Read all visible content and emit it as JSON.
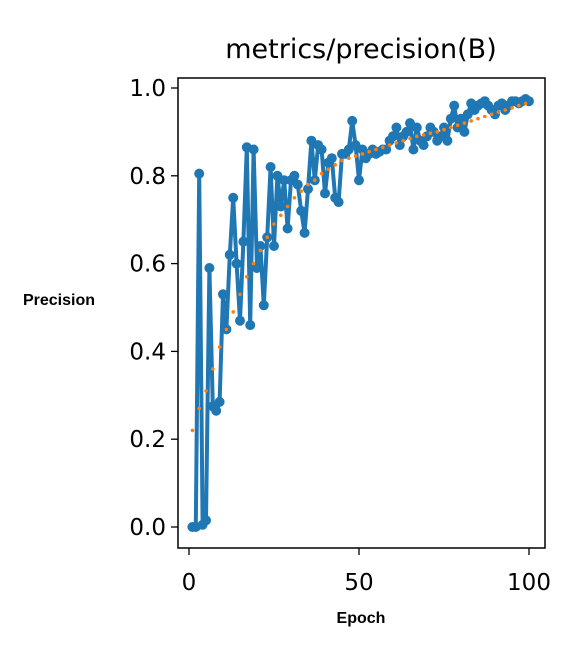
{
  "chart_data": {
    "type": "line",
    "title": "metrics/precision(B)",
    "xlabel": "Epoch",
    "ylabel": "Precision",
    "xlim": [
      0,
      100
    ],
    "ylim": [
      0,
      1.0
    ],
    "xticks": [
      0,
      50,
      100
    ],
    "xtick_labels": [
      "0",
      "50",
      "100"
    ],
    "yticks": [
      0.0,
      0.2,
      0.4,
      0.6,
      0.8,
      1.0
    ],
    "ytick_labels": [
      "0.0",
      "0.2",
      "0.4",
      "0.6",
      "0.8",
      "1.0"
    ],
    "grid": false,
    "colors": {
      "series": "#1f77b4",
      "smooth": "#ff7f0e"
    },
    "series": [
      {
        "style": "line-markers",
        "x": [
          1,
          2,
          3,
          4,
          5,
          6,
          7,
          8,
          9,
          10,
          11,
          12,
          13,
          14,
          15,
          16,
          17,
          18,
          19,
          20,
          21,
          22,
          23,
          24,
          25,
          26,
          27,
          28,
          29,
          30,
          31,
          32,
          33,
          34,
          35,
          36,
          37,
          38,
          39,
          40,
          41,
          42,
          43,
          44,
          45,
          46,
          47,
          48,
          49,
          50,
          51,
          52,
          53,
          54,
          55,
          56,
          57,
          58,
          59,
          60,
          61,
          62,
          63,
          64,
          65,
          66,
          67,
          68,
          69,
          70,
          71,
          72,
          73,
          74,
          75,
          76,
          77,
          78,
          79,
          80,
          81,
          82,
          83,
          84,
          85,
          86,
          87,
          88,
          89,
          90,
          91,
          92,
          93,
          94,
          95,
          96,
          97,
          98,
          99,
          100
        ],
        "y": [
          0.0,
          0.0,
          0.805,
          0.005,
          0.015,
          0.59,
          0.275,
          0.265,
          0.285,
          0.53,
          0.45,
          0.62,
          0.75,
          0.6,
          0.47,
          0.65,
          0.865,
          0.46,
          0.86,
          0.59,
          0.64,
          0.505,
          0.66,
          0.82,
          0.64,
          0.8,
          0.73,
          0.79,
          0.68,
          0.79,
          0.8,
          0.78,
          0.72,
          0.67,
          0.77,
          0.88,
          0.79,
          0.87,
          0.86,
          0.76,
          0.83,
          0.84,
          0.75,
          0.74,
          0.85,
          0.85,
          0.86,
          0.925,
          0.87,
          0.79,
          0.86,
          0.84,
          0.85,
          0.86,
          0.85,
          0.855,
          0.86,
          0.86,
          0.88,
          0.89,
          0.91,
          0.87,
          0.89,
          0.9,
          0.92,
          0.86,
          0.91,
          0.88,
          0.87,
          0.89,
          0.91,
          0.9,
          0.88,
          0.89,
          0.91,
          0.88,
          0.93,
          0.96,
          0.91,
          0.93,
          0.9,
          0.94,
          0.965,
          0.95,
          0.96,
          0.965,
          0.97,
          0.96,
          0.95,
          0.94,
          0.96,
          0.965,
          0.95,
          0.96,
          0.97,
          0.97,
          0.965,
          0.97,
          0.975,
          0.97
        ]
      },
      {
        "style": "dotted",
        "x": [
          1,
          3,
          5,
          7,
          9,
          11,
          13,
          15,
          17,
          19,
          21,
          23,
          25,
          27,
          29,
          31,
          33,
          35,
          37,
          39,
          41,
          43,
          45,
          47,
          49,
          51,
          53,
          55,
          57,
          59,
          61,
          63,
          65,
          67,
          69,
          71,
          73,
          75,
          77,
          79,
          81,
          83,
          85,
          87,
          89,
          91,
          93,
          95,
          97,
          99
        ],
        "y": [
          0.22,
          0.27,
          0.31,
          0.36,
          0.41,
          0.45,
          0.49,
          0.53,
          0.57,
          0.6,
          0.63,
          0.66,
          0.69,
          0.71,
          0.73,
          0.75,
          0.765,
          0.78,
          0.79,
          0.805,
          0.815,
          0.825,
          0.835,
          0.84,
          0.845,
          0.85,
          0.855,
          0.86,
          0.865,
          0.87,
          0.875,
          0.88,
          0.885,
          0.89,
          0.893,
          0.897,
          0.9,
          0.905,
          0.91,
          0.915,
          0.92,
          0.925,
          0.93,
          0.935,
          0.94,
          0.945,
          0.95,
          0.955,
          0.96,
          0.965
        ]
      }
    ]
  }
}
